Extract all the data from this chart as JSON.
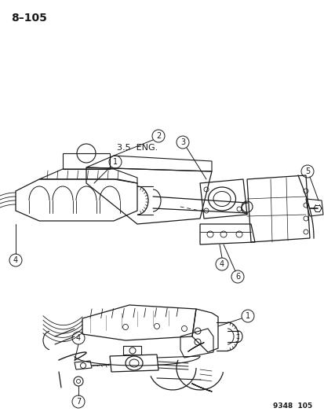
{
  "page_number": "8–105",
  "figure_number": "9348  105",
  "label_35eng": "3.5  ENG.",
  "bg_color": "#ffffff",
  "line_color": "#1a1a1a",
  "text_color": "#1a1a1a",
  "gray_color": "#888888",
  "light_gray": "#cccccc",
  "page_num_fontsize": 10,
  "label_fontsize": 7.5,
  "callout_fontsize": 7,
  "fig_num_fontsize": 6.5
}
